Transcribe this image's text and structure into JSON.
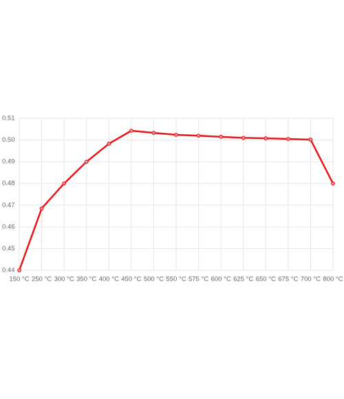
{
  "chart_data": {
    "type": "line",
    "categories": [
      "150 °C",
      "250 °C",
      "300 °C",
      "350 °C",
      "400 °C",
      "450 °C",
      "500 °C",
      "550 °C",
      "575 °C",
      "600 °C",
      "625 °C",
      "650 °C",
      "675 °C",
      "700 °C",
      "800 °C"
    ],
    "series": [
      {
        "color": "#e8161b",
        "values": [
          0.44,
          0.4685,
          0.48,
          0.49,
          0.4983,
          0.5043,
          0.5033,
          0.5024,
          0.502,
          0.5015,
          0.501,
          0.5008,
          0.5005,
          0.5002,
          0.48
        ]
      }
    ],
    "ylim": [
      0.44,
      0.51
    ],
    "yticks": [
      0.44,
      0.45,
      0.46,
      0.47,
      0.48,
      0.49,
      {
        "value": 0.5,
        "label": "0.50"
      },
      0.51
    ],
    "grid": true
  }
}
